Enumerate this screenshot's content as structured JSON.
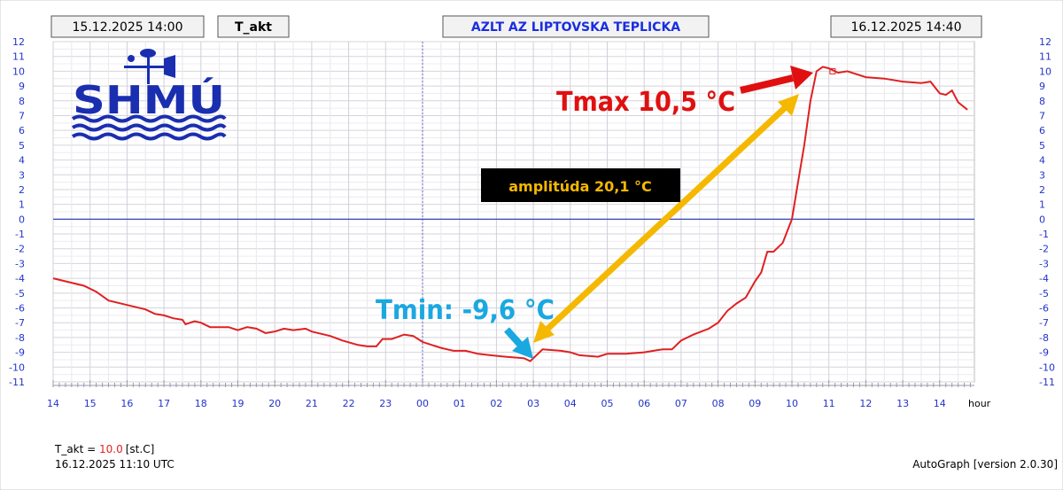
{
  "header": {
    "start_time": "15.12.2025 14:00",
    "variable": "T_akt",
    "station": "AZLT AZ LIPTOVSKA TEPLICKA",
    "end_time": "16.12.2025 14:40"
  },
  "logo": {
    "text": "SHMÚ"
  },
  "annotations": {
    "tmax": "Tmax 10,5 °C",
    "tmin": "Tmin: -9,6 °C",
    "amplitude": "amplitúda 20,1 °C"
  },
  "footer": {
    "current_label": "T_akt = ",
    "current_value": "10.0",
    "current_unit": "[st.C]",
    "timestamp": "16.12.2025 11:10 UTC",
    "version": "AutoGraph [version 2.0.30]"
  },
  "colors": {
    "series": "#e02020",
    "axis": "#2233cc",
    "tmax": "#e01010",
    "tmin": "#1aa8e0",
    "amplitude": "#f5b800"
  },
  "chart_data": {
    "type": "line",
    "xlabel": "hour",
    "x_ticks": [
      "14",
      "15",
      "16",
      "17",
      "18",
      "19",
      "20",
      "21",
      "22",
      "23",
      "00",
      "01",
      "02",
      "03",
      "04",
      "05",
      "06",
      "07",
      "08",
      "09",
      "10",
      "11",
      "12",
      "13",
      "14"
    ],
    "y_ticks": [
      12,
      11,
      10,
      9,
      8,
      7,
      6,
      5,
      4,
      3,
      2,
      1,
      0,
      -1,
      -2,
      -3,
      -4,
      -5,
      -6,
      -7,
      -8,
      -9,
      -10,
      -11
    ],
    "ylim": [
      -11,
      12
    ],
    "grid": true,
    "series": [
      {
        "points": [
          [
            "14:00",
            -4.0
          ],
          [
            "14:30",
            -4.3
          ],
          [
            "14:50",
            -4.5
          ],
          [
            "15:10",
            -4.9
          ],
          [
            "15:30",
            -5.5
          ],
          [
            "16:00",
            -5.8
          ],
          [
            "16:30",
            -6.1
          ],
          [
            "16:45",
            -6.4
          ],
          [
            "17:00",
            -6.5
          ],
          [
            "17:15",
            -6.7
          ],
          [
            "17:30",
            -6.8
          ],
          [
            "17:35",
            -7.1
          ],
          [
            "17:50",
            -6.9
          ],
          [
            "18:00",
            -7.0
          ],
          [
            "18:15",
            -7.3
          ],
          [
            "18:45",
            -7.3
          ],
          [
            "19:00",
            -7.5
          ],
          [
            "19:15",
            -7.3
          ],
          [
            "19:30",
            -7.4
          ],
          [
            "19:45",
            -7.7
          ],
          [
            "20:00",
            -7.6
          ],
          [
            "20:15",
            -7.4
          ],
          [
            "20:30",
            -7.5
          ],
          [
            "20:50",
            -7.4
          ],
          [
            "21:00",
            -7.6
          ],
          [
            "21:30",
            -7.9
          ],
          [
            "21:50",
            -8.2
          ],
          [
            "22:15",
            -8.5
          ],
          [
            "22:30",
            -8.6
          ],
          [
            "22:45",
            -8.6
          ],
          [
            "22:55",
            -8.1
          ],
          [
            "23:10",
            -8.1
          ],
          [
            "23:30",
            -7.8
          ],
          [
            "23:45",
            -7.9
          ],
          [
            "00:00",
            -8.3
          ],
          [
            "00:15",
            -8.5
          ],
          [
            "00:30",
            -8.7
          ],
          [
            "00:50",
            -8.9
          ],
          [
            "01:10",
            -8.9
          ],
          [
            "01:30",
            -9.1
          ],
          [
            "01:50",
            -9.2
          ],
          [
            "02:15",
            -9.3
          ],
          [
            "02:45",
            -9.4
          ],
          [
            "02:55",
            -9.6
          ],
          [
            "03:15",
            -8.8
          ],
          [
            "03:45",
            -8.9
          ],
          [
            "04:00",
            -9.0
          ],
          [
            "04:15",
            -9.2
          ],
          [
            "04:45",
            -9.3
          ],
          [
            "05:00",
            -9.1
          ],
          [
            "05:30",
            -9.1
          ],
          [
            "06:00",
            -9.0
          ],
          [
            "06:15",
            -8.9
          ],
          [
            "06:30",
            -8.8
          ],
          [
            "06:45",
            -8.8
          ],
          [
            "07:00",
            -8.2
          ],
          [
            "07:20",
            -7.8
          ],
          [
            "07:45",
            -7.4
          ],
          [
            "08:00",
            -7.0
          ],
          [
            "08:15",
            -6.2
          ],
          [
            "08:30",
            -5.7
          ],
          [
            "08:45",
            -5.3
          ],
          [
            "09:00",
            -4.2
          ],
          [
            "09:10",
            -3.6
          ],
          [
            "09:20",
            -2.2
          ],
          [
            "09:30",
            -2.2
          ],
          [
            "09:45",
            -1.6
          ],
          [
            "10:00",
            0.0
          ],
          [
            "10:10",
            2.5
          ],
          [
            "10:20",
            5.0
          ],
          [
            "10:30",
            8.0
          ],
          [
            "10:40",
            10.0
          ],
          [
            "10:50",
            10.3
          ],
          [
            "11:00",
            10.2
          ],
          [
            "11:15",
            9.9
          ],
          [
            "11:30",
            10.0
          ],
          [
            "12:00",
            9.6
          ],
          [
            "12:30",
            9.5
          ],
          [
            "13:00",
            9.3
          ],
          [
            "13:30",
            9.2
          ],
          [
            "13:45",
            9.3
          ],
          [
            "14:00",
            8.5
          ],
          [
            "14:10",
            8.4
          ],
          [
            "14:20",
            8.7
          ],
          [
            "14:30",
            7.9
          ],
          [
            "14:45",
            7.4
          ]
        ]
      }
    ]
  }
}
